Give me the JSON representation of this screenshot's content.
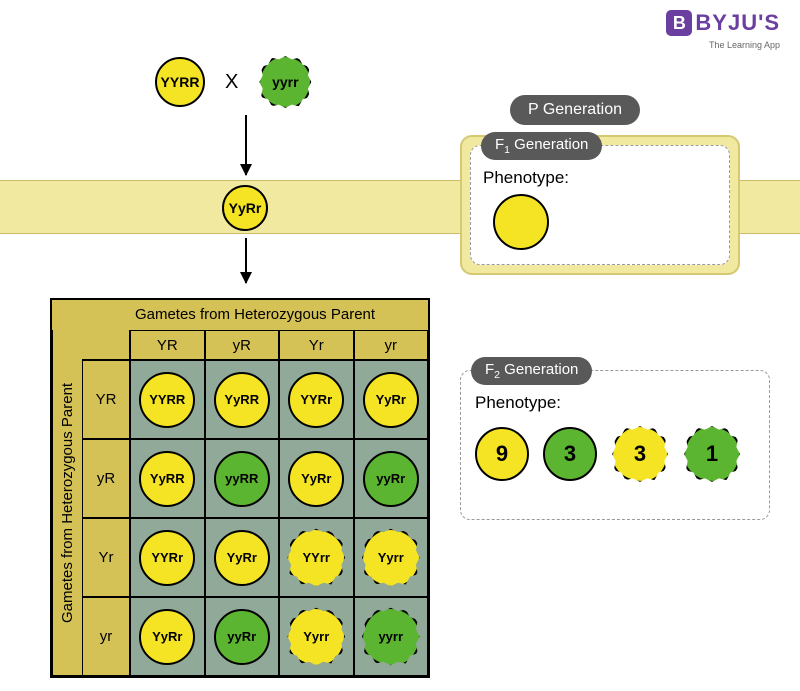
{
  "logo": {
    "badge": "B",
    "text": "BYJU'S",
    "sub": "The Learning App"
  },
  "colors": {
    "yellow": "#f5e424",
    "green": "#5cb531",
    "band": "#f2e9a0",
    "grid_bg": "#90a999",
    "header_bg": "#d4c256",
    "badge_bg": "#595959"
  },
  "parents": {
    "p1": {
      "genotype": "YYRR",
      "color": "#f5e424",
      "shape": "round"
    },
    "cross": "X",
    "p2": {
      "genotype": "yyrr",
      "color": "#5cb531",
      "shape": "wrinkled"
    },
    "label": "P Generation"
  },
  "f1": {
    "genotype": "YyRr",
    "color": "#f5e424",
    "shape": "round",
    "label": "F₁ Generation",
    "pheno_label": "Phenotype:"
  },
  "punnett": {
    "title_top": "Gametes from Heterozygous Parent",
    "title_left": "Gametes from Heterozygous Parent",
    "gametes": [
      "YR",
      "yR",
      "Yr",
      "yr"
    ],
    "cells": [
      [
        {
          "g": "YYRR",
          "c": "#f5e424",
          "s": "round"
        },
        {
          "g": "YyRR",
          "c": "#f5e424",
          "s": "round"
        },
        {
          "g": "YYRr",
          "c": "#f5e424",
          "s": "round"
        },
        {
          "g": "YyRr",
          "c": "#f5e424",
          "s": "round"
        }
      ],
      [
        {
          "g": "YyRR",
          "c": "#f5e424",
          "s": "round"
        },
        {
          "g": "yyRR",
          "c": "#5cb531",
          "s": "round"
        },
        {
          "g": "YyRr",
          "c": "#f5e424",
          "s": "round"
        },
        {
          "g": "yyRr",
          "c": "#5cb531",
          "s": "round"
        }
      ],
      [
        {
          "g": "YYRr",
          "c": "#f5e424",
          "s": "round"
        },
        {
          "g": "YyRr",
          "c": "#f5e424",
          "s": "round"
        },
        {
          "g": "YYrr",
          "c": "#f5e424",
          "s": "wrinkled"
        },
        {
          "g": "Yyrr",
          "c": "#f5e424",
          "s": "wrinkled"
        }
      ],
      [
        {
          "g": "YyRr",
          "c": "#f5e424",
          "s": "round"
        },
        {
          "g": "yyRr",
          "c": "#5cb531",
          "s": "round"
        },
        {
          "g": "Yyrr",
          "c": "#f5e424",
          "s": "wrinkled"
        },
        {
          "g": "yyrr",
          "c": "#5cb531",
          "s": "wrinkled"
        }
      ]
    ]
  },
  "f2": {
    "label": "F₂ Generation",
    "pheno_label": "Phenotype:",
    "ratio": [
      {
        "n": "9",
        "c": "#f5e424",
        "s": "round"
      },
      {
        "n": "3",
        "c": "#5cb531",
        "s": "round"
      },
      {
        "n": "3",
        "c": "#f5e424",
        "s": "wrinkled"
      },
      {
        "n": "1",
        "c": "#5cb531",
        "s": "wrinkled"
      }
    ]
  }
}
